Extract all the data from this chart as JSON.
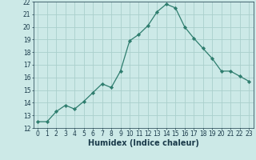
{
  "x": [
    0,
    1,
    2,
    3,
    4,
    5,
    6,
    7,
    8,
    9,
    10,
    11,
    12,
    13,
    14,
    15,
    16,
    17,
    18,
    19,
    20,
    21,
    22,
    23
  ],
  "y": [
    12.5,
    12.5,
    13.3,
    13.8,
    13.5,
    14.1,
    14.8,
    15.5,
    15.2,
    16.5,
    18.9,
    19.4,
    20.1,
    21.2,
    21.8,
    21.5,
    20.0,
    19.1,
    18.3,
    17.5,
    16.5,
    16.5,
    16.1,
    15.7
  ],
  "line_color": "#2e7d6e",
  "marker": "D",
  "marker_size": 2.2,
  "bg_color": "#cce9e7",
  "grid_color": "#aacfcc",
  "xlabel": "Humidex (Indice chaleur)",
  "xlim": [
    -0.5,
    23.5
  ],
  "ylim": [
    12,
    22
  ],
  "yticks": [
    12,
    13,
    14,
    15,
    16,
    17,
    18,
    19,
    20,
    21,
    22
  ],
  "xticks": [
    0,
    1,
    2,
    3,
    4,
    5,
    6,
    7,
    8,
    9,
    10,
    11,
    12,
    13,
    14,
    15,
    16,
    17,
    18,
    19,
    20,
    21,
    22,
    23
  ],
  "tick_fontsize": 5.5,
  "xlabel_fontsize": 7.0,
  "label_color": "#1a3a4a"
}
